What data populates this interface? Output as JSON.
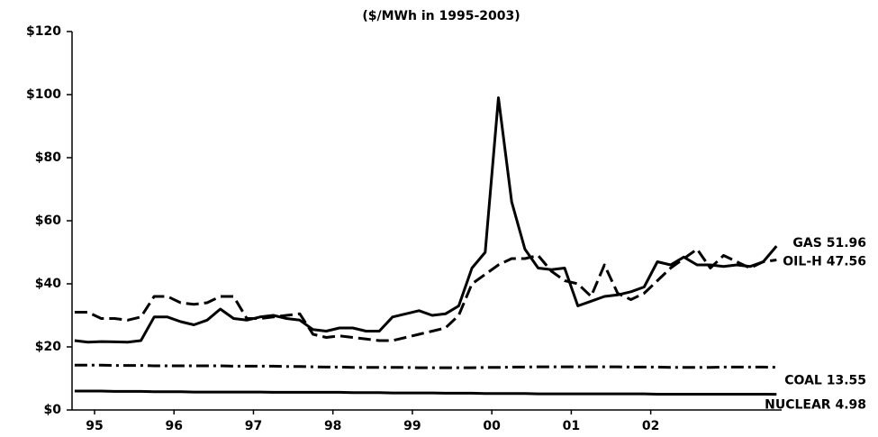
{
  "chart_data": {
    "type": "line",
    "title": "($/MWh in 1995-2003)",
    "x": [
      0,
      2,
      4,
      6,
      8,
      10,
      12,
      14,
      16,
      18,
      20,
      22,
      24,
      26,
      28,
      30,
      32,
      34,
      36,
      38,
      40,
      42,
      44,
      46,
      48,
      50,
      52,
      54,
      56,
      58,
      60,
      62,
      64,
      66,
      68,
      70,
      72,
      74,
      76,
      78,
      80,
      82,
      84,
      86,
      88,
      90,
      92,
      94,
      96,
      98,
      100,
      102,
      104,
      106
    ],
    "xlim": [
      -0.4,
      106.5
    ],
    "xticks": [
      {
        "value": 3,
        "label": "95"
      },
      {
        "value": 15,
        "label": "96"
      },
      {
        "value": 27,
        "label": "97"
      },
      {
        "value": 39,
        "label": "98"
      },
      {
        "value": 51,
        "label": "99"
      },
      {
        "value": 63,
        "label": "00"
      },
      {
        "value": 75,
        "label": "01"
      },
      {
        "value": 87,
        "label": "02"
      }
    ],
    "ylim": [
      0,
      120
    ],
    "yticks": [
      {
        "value": 0,
        "label": "$0"
      },
      {
        "value": 20,
        "label": "$20"
      },
      {
        "value": 40,
        "label": "$40"
      },
      {
        "value": 60,
        "label": "$60"
      },
      {
        "value": 80,
        "label": "$80"
      },
      {
        "value": 100,
        "label": "$100"
      },
      {
        "value": 120,
        "label": "$120"
      }
    ],
    "series": [
      {
        "name": "GAS 51.96",
        "color": "#000000",
        "dash": "solid",
        "values": [
          22,
          21.5,
          21.7,
          21.6,
          21.5,
          22,
          29.5,
          29.5,
          28,
          27,
          28.5,
          32,
          29,
          28.5,
          29.5,
          30,
          29,
          28.5,
          25.5,
          25,
          26,
          26,
          25,
          25,
          29.5,
          30.5,
          31.5,
          30,
          30.5,
          33,
          45,
          50,
          99,
          66,
          51,
          45,
          44.5,
          45,
          33,
          34.5,
          36,
          36.5,
          37.5,
          39,
          47,
          46,
          48.5,
          46,
          46,
          45.5,
          46,
          45.5,
          47,
          51.96
        ]
      },
      {
        "name": "OIL-H 47.56",
        "color": "#000000",
        "dash": "dashed",
        "values": [
          31,
          31,
          29,
          29,
          28.5,
          29.5,
          36,
          36,
          34,
          33.5,
          34,
          36,
          36,
          29,
          29,
          29.5,
          30,
          30.5,
          24,
          23,
          23.5,
          23,
          22.5,
          22,
          22,
          23,
          24,
          25,
          26,
          30,
          40,
          43,
          46,
          48,
          48,
          49,
          44,
          41,
          40,
          36,
          46,
          37,
          35,
          37,
          41,
          45,
          48,
          51,
          45,
          49,
          47,
          45,
          47,
          47.56
        ]
      },
      {
        "name": "COAL 13.55",
        "color": "#000000",
        "dash": "dashdot",
        "values": [
          14.2,
          14.2,
          14.2,
          14.1,
          14.1,
          14.1,
          14,
          14,
          14,
          14,
          14,
          14,
          13.9,
          13.9,
          13.9,
          13.9,
          13.8,
          13.8,
          13.7,
          13.6,
          13.6,
          13.5,
          13.5,
          13.5,
          13.5,
          13.5,
          13.4,
          13.4,
          13.4,
          13.4,
          13.4,
          13.5,
          13.5,
          13.6,
          13.6,
          13.7,
          13.7,
          13.7,
          13.7,
          13.7,
          13.7,
          13.7,
          13.6,
          13.6,
          13.6,
          13.5,
          13.5,
          13.5,
          13.5,
          13.6,
          13.6,
          13.6,
          13.6,
          13.55
        ]
      },
      {
        "name": "NUCLEAR 4.98",
        "color": "#000000",
        "dash": "solid",
        "values": [
          6,
          6,
          6,
          5.9,
          5.9,
          5.9,
          5.8,
          5.8,
          5.8,
          5.7,
          5.7,
          5.7,
          5.7,
          5.7,
          5.7,
          5.6,
          5.6,
          5.6,
          5.6,
          5.6,
          5.6,
          5.5,
          5.5,
          5.5,
          5.4,
          5.4,
          5.4,
          5.4,
          5.3,
          5.3,
          5.3,
          5.2,
          5.2,
          5.2,
          5.2,
          5.1,
          5.1,
          5.1,
          5.1,
          5.1,
          5.1,
          5.1,
          5.1,
          5.1,
          5.0,
          5.0,
          5.0,
          5.0,
          5.0,
          5.0,
          5.0,
          5.0,
          5.0,
          4.98
        ]
      }
    ]
  }
}
